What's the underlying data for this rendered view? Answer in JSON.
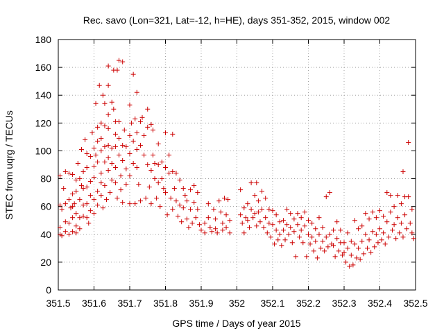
{
  "chart_data": {
    "type": "scatter",
    "title": "Rec. savo (Lon=321, Lat=-12, h=HE), days 351-352, 2015, window 002",
    "xlabel": "GPS time / Days of year 2015",
    "ylabel": "STEC from uqrg / TECUs",
    "xlim": [
      351.5,
      352.5
    ],
    "ylim": [
      0,
      180
    ],
    "xticks": [
      351.5,
      351.6,
      351.7,
      351.8,
      351.9,
      352,
      352.1,
      352.2,
      352.3,
      352.4,
      352.5
    ],
    "xtick_labels": [
      "351.5",
      "351.6",
      "351.7",
      "351.8",
      "351.9",
      "352",
      "352.1",
      "352.2",
      "352.3",
      "352.4",
      "352.5"
    ],
    "yticks": [
      0,
      20,
      40,
      60,
      80,
      100,
      120,
      140,
      160,
      180
    ],
    "ytick_labels": [
      "0",
      "20",
      "40",
      "60",
      "80",
      "100",
      "120",
      "140",
      "160",
      "180"
    ],
    "grid": true,
    "marker": "+",
    "color": "#cc0000",
    "points": [
      [
        351.505,
        82
      ],
      [
        351.505,
        61
      ],
      [
        351.505,
        45
      ],
      [
        351.505,
        40
      ],
      [
        351.51,
        39
      ],
      [
        351.51,
        58
      ],
      [
        351.515,
        73
      ],
      [
        351.52,
        85
      ],
      [
        351.52,
        62
      ],
      [
        351.52,
        49
      ],
      [
        351.52,
        42
      ],
      [
        351.53,
        84
      ],
      [
        351.53,
        65
      ],
      [
        351.53,
        48
      ],
      [
        351.53,
        40
      ],
      [
        351.535,
        59
      ],
      [
        351.54,
        83
      ],
      [
        351.54,
        69
      ],
      [
        351.54,
        60
      ],
      [
        351.54,
        52
      ],
      [
        351.54,
        42
      ],
      [
        351.545,
        62
      ],
      [
        351.55,
        79
      ],
      [
        351.55,
        71
      ],
      [
        351.55,
        55
      ],
      [
        351.55,
        46
      ],
      [
        351.55,
        41
      ],
      [
        351.555,
        91
      ],
      [
        351.56,
        80
      ],
      [
        351.56,
        65
      ],
      [
        351.56,
        52
      ],
      [
        351.56,
        44
      ],
      [
        351.565,
        101
      ],
      [
        351.565,
        75
      ],
      [
        351.57,
        85
      ],
      [
        351.57,
        73
      ],
      [
        351.57,
        61
      ],
      [
        351.57,
        53
      ],
      [
        351.575,
        108
      ],
      [
        351.58,
        98
      ],
      [
        351.58,
        88
      ],
      [
        351.58,
        74
      ],
      [
        351.58,
        62
      ],
      [
        351.58,
        52
      ],
      [
        351.585,
        48
      ],
      [
        351.59,
        96
      ],
      [
        351.59,
        78
      ],
      [
        351.59,
        68
      ],
      [
        351.59,
        57
      ],
      [
        351.595,
        113
      ],
      [
        351.6,
        102
      ],
      [
        351.6,
        89
      ],
      [
        351.6,
        81
      ],
      [
        351.6,
        65
      ],
      [
        351.6,
        55
      ],
      [
        351.605,
        134
      ],
      [
        351.605,
        97
      ],
      [
        351.61,
        117
      ],
      [
        351.61,
        107
      ],
      [
        351.61,
        92
      ],
      [
        351.61,
        71
      ],
      [
        351.61,
        61
      ],
      [
        351.615,
        147
      ],
      [
        351.62,
        120
      ],
      [
        351.62,
        109
      ],
      [
        351.62,
        100
      ],
      [
        351.62,
        84
      ],
      [
        351.62,
        77
      ],
      [
        351.62,
        68
      ],
      [
        351.625,
        140
      ],
      [
        351.625,
        59
      ],
      [
        351.63,
        134
      ],
      [
        351.63,
        118
      ],
      [
        351.63,
        103
      ],
      [
        351.63,
        92
      ],
      [
        351.63,
        75
      ],
      [
        351.635,
        65
      ],
      [
        351.64,
        161
      ],
      [
        351.64,
        147
      ],
      [
        351.64,
        126
      ],
      [
        351.64,
        116
      ],
      [
        351.64,
        104
      ],
      [
        351.64,
        95
      ],
      [
        351.64,
        86
      ],
      [
        351.645,
        70
      ],
      [
        351.65,
        135
      ],
      [
        351.65,
        102
      ],
      [
        351.65,
        91
      ],
      [
        351.65,
        79
      ],
      [
        351.655,
        158
      ],
      [
        351.655,
        130
      ],
      [
        351.66,
        121
      ],
      [
        351.66,
        112
      ],
      [
        351.66,
        103
      ],
      [
        351.66,
        88
      ],
      [
        351.66,
        77
      ],
      [
        351.665,
        158
      ],
      [
        351.665,
        66
      ],
      [
        351.67,
        165
      ],
      [
        351.67,
        121
      ],
      [
        351.67,
        109
      ],
      [
        351.67,
        97
      ],
      [
        351.675,
        82
      ],
      [
        351.675,
        72
      ],
      [
        351.68,
        164
      ],
      [
        351.68,
        104
      ],
      [
        351.68,
        93
      ],
      [
        351.68,
        63
      ],
      [
        351.685,
        115
      ],
      [
        351.69,
        103
      ],
      [
        351.69,
        87
      ],
      [
        351.69,
        76
      ],
      [
        351.7,
        133
      ],
      [
        351.7,
        111
      ],
      [
        351.7,
        98
      ],
      [
        351.7,
        82
      ],
      [
        351.7,
        62
      ],
      [
        351.705,
        120
      ],
      [
        351.71,
        155
      ],
      [
        351.71,
        107
      ],
      [
        351.71,
        91
      ],
      [
        351.715,
        123
      ],
      [
        351.715,
        62
      ],
      [
        351.72,
        142
      ],
      [
        351.72,
        113
      ],
      [
        351.72,
        101
      ],
      [
        351.72,
        88
      ],
      [
        351.725,
        76
      ],
      [
        351.73,
        121
      ],
      [
        351.73,
        104
      ],
      [
        351.73,
        64
      ],
      [
        351.735,
        124
      ],
      [
        351.74,
        111
      ],
      [
        351.74,
        97
      ],
      [
        351.745,
        66
      ],
      [
        351.75,
        130
      ],
      [
        351.75,
        117
      ],
      [
        351.75,
        90
      ],
      [
        351.755,
        74
      ],
      [
        351.76,
        119
      ],
      [
        351.76,
        86
      ],
      [
        351.76,
        62
      ],
      [
        351.765,
        115
      ],
      [
        351.765,
        97
      ],
      [
        351.77,
        91
      ],
      [
        351.77,
        80
      ],
      [
        351.775,
        66
      ],
      [
        351.78,
        105
      ],
      [
        351.78,
        90
      ],
      [
        351.78,
        77
      ],
      [
        351.785,
        60
      ],
      [
        351.79,
        92
      ],
      [
        351.79,
        80
      ],
      [
        351.795,
        73
      ],
      [
        351.8,
        113
      ],
      [
        351.8,
        88
      ],
      [
        351.8,
        70
      ],
      [
        351.805,
        54
      ],
      [
        351.81,
        97
      ],
      [
        351.81,
        84
      ],
      [
        351.815,
        66
      ],
      [
        351.82,
        112
      ],
      [
        351.82,
        85
      ],
      [
        351.82,
        58
      ],
      [
        351.825,
        73
      ],
      [
        351.83,
        84
      ],
      [
        351.83,
        64
      ],
      [
        351.835,
        53
      ],
      [
        351.84,
        79
      ],
      [
        351.84,
        61
      ],
      [
        351.845,
        49
      ],
      [
        351.85,
        73
      ],
      [
        351.85,
        59
      ],
      [
        351.855,
        68
      ],
      [
        351.86,
        64
      ],
      [
        351.86,
        51
      ],
      [
        351.865,
        45
      ],
      [
        351.87,
        72
      ],
      [
        351.87,
        58
      ],
      [
        351.875,
        48
      ],
      [
        351.88,
        75
      ],
      [
        351.88,
        63
      ],
      [
        351.885,
        52
      ],
      [
        351.89,
        70
      ],
      [
        351.89,
        58
      ],
      [
        351.895,
        47
      ],
      [
        351.9,
        43
      ],
      [
        351.91,
        48
      ],
      [
        351.91,
        41
      ],
      [
        351.92,
        62
      ],
      [
        351.92,
        52
      ],
      [
        351.925,
        45
      ],
      [
        351.93,
        42
      ],
      [
        351.935,
        58
      ],
      [
        351.94,
        51
      ],
      [
        351.94,
        44
      ],
      [
        351.945,
        41
      ],
      [
        351.95,
        64
      ],
      [
        351.955,
        56
      ],
      [
        351.96,
        48
      ],
      [
        351.96,
        43
      ],
      [
        351.965,
        66
      ],
      [
        351.97,
        54
      ],
      [
        351.97,
        45
      ],
      [
        351.975,
        65
      ],
      [
        351.98,
        50
      ],
      [
        351.98,
        41
      ],
      [
        352.01,
        72
      ],
      [
        352.01,
        54
      ],
      [
        352.015,
        48
      ],
      [
        352.02,
        41
      ],
      [
        352.02,
        59
      ],
      [
        352.025,
        52
      ],
      [
        352.03,
        62
      ],
      [
        352.03,
        50
      ],
      [
        352.035,
        45
      ],
      [
        352.04,
        77
      ],
      [
        352.04,
        58
      ],
      [
        352.045,
        52
      ],
      [
        352.05,
        68
      ],
      [
        352.05,
        55
      ],
      [
        352.055,
        77
      ],
      [
        352.055,
        46
      ],
      [
        352.06,
        64
      ],
      [
        352.06,
        56
      ],
      [
        352.065,
        49
      ],
      [
        352.07,
        71
      ],
      [
        352.07,
        58
      ],
      [
        352.075,
        45
      ],
      [
        352.08,
        66
      ],
      [
        352.08,
        52
      ],
      [
        352.085,
        41
      ],
      [
        352.09,
        58
      ],
      [
        352.09,
        48
      ],
      [
        352.095,
        38
      ],
      [
        352.1,
        57
      ],
      [
        352.1,
        47
      ],
      [
        352.105,
        33
      ],
      [
        352.11,
        54
      ],
      [
        352.11,
        43
      ],
      [
        352.115,
        36
      ],
      [
        352.12,
        49
      ],
      [
        352.12,
        40
      ],
      [
        352.125,
        32
      ],
      [
        352.13,
        50
      ],
      [
        352.13,
        43
      ],
      [
        352.135,
        36
      ],
      [
        352.14,
        58
      ],
      [
        352.14,
        47
      ],
      [
        352.145,
        40
      ],
      [
        352.15,
        55
      ],
      [
        352.15,
        45
      ],
      [
        352.155,
        34
      ],
      [
        352.16,
        51
      ],
      [
        352.16,
        42
      ],
      [
        352.165,
        24
      ],
      [
        352.17,
        55
      ],
      [
        352.17,
        47
      ],
      [
        352.175,
        38
      ],
      [
        352.18,
        52
      ],
      [
        352.18,
        43
      ],
      [
        352.185,
        34
      ],
      [
        352.19,
        56
      ],
      [
        352.19,
        46
      ],
      [
        352.195,
        24
      ],
      [
        352.2,
        50
      ],
      [
        352.2,
        40
      ],
      [
        352.205,
        33
      ],
      [
        352.21,
        48
      ],
      [
        352.21,
        38
      ],
      [
        352.215,
        28
      ],
      [
        352.22,
        44
      ],
      [
        352.22,
        35
      ],
      [
        352.225,
        23
      ],
      [
        352.23,
        52
      ],
      [
        352.23,
        40
      ],
      [
        352.235,
        30
      ],
      [
        352.24,
        45
      ],
      [
        352.24,
        35
      ],
      [
        352.245,
        28
      ],
      [
        352.25,
        67
      ],
      [
        352.25,
        38
      ],
      [
        352.255,
        31
      ],
      [
        352.26,
        70
      ],
      [
        352.26,
        40
      ],
      [
        352.265,
        33
      ],
      [
        352.27,
        43
      ],
      [
        352.27,
        32
      ],
      [
        352.275,
        24
      ],
      [
        352.28,
        49
      ],
      [
        352.28,
        37
      ],
      [
        352.285,
        28
      ],
      [
        352.29,
        43
      ],
      [
        352.29,
        34
      ],
      [
        352.295,
        25
      ],
      [
        352.3,
        34
      ],
      [
        352.3,
        27
      ],
      [
        352.305,
        20
      ],
      [
        352.31,
        41
      ],
      [
        352.31,
        30
      ],
      [
        352.315,
        17
      ],
      [
        352.32,
        35
      ],
      [
        352.32,
        25
      ],
      [
        352.325,
        18
      ],
      [
        352.33,
        50
      ],
      [
        352.33,
        33
      ],
      [
        352.335,
        23
      ],
      [
        352.34,
        44
      ],
      [
        352.34,
        30
      ],
      [
        352.345,
        22
      ],
      [
        352.35,
        46
      ],
      [
        352.35,
        35
      ],
      [
        352.355,
        26
      ],
      [
        352.36,
        55
      ],
      [
        352.36,
        40
      ],
      [
        352.365,
        30
      ],
      [
        352.37,
        51
      ],
      [
        352.37,
        36
      ],
      [
        352.375,
        27
      ],
      [
        352.38,
        56
      ],
      [
        352.38,
        42
      ],
      [
        352.385,
        31
      ],
      [
        352.39,
        52
      ],
      [
        352.39,
        40
      ],
      [
        352.395,
        34
      ],
      [
        352.4,
        57
      ],
      [
        352.4,
        44
      ],
      [
        352.405,
        36
      ],
      [
        352.41,
        53
      ],
      [
        352.41,
        41
      ],
      [
        352.415,
        33
      ],
      [
        352.42,
        70
      ],
      [
        352.42,
        49
      ],
      [
        352.425,
        38
      ],
      [
        352.43,
        68
      ],
      [
        352.43,
        56
      ],
      [
        352.435,
        43
      ],
      [
        352.44,
        60
      ],
      [
        352.44,
        47
      ],
      [
        352.445,
        37
      ],
      [
        352.45,
        68
      ],
      [
        352.45,
        52
      ],
      [
        352.455,
        41
      ],
      [
        352.46,
        62
      ],
      [
        352.46,
        48
      ],
      [
        352.465,
        85
      ],
      [
        352.465,
        38
      ],
      [
        352.47,
        67
      ],
      [
        352.47,
        54
      ],
      [
        352.475,
        44
      ],
      [
        352.48,
        106
      ],
      [
        352.48,
        67
      ],
      [
        352.485,
        48
      ],
      [
        352.49,
        58
      ],
      [
        352.49,
        41
      ],
      [
        352.495,
        37
      ]
    ]
  }
}
